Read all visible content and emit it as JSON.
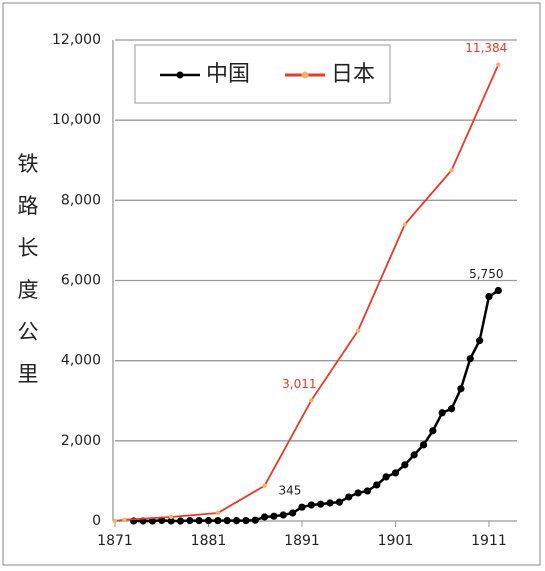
{
  "chart_data": {
    "type": "line",
    "y_label": "铁路长度公里",
    "xlim": [
      1871,
      1914
    ],
    "xticks": [
      1871,
      1881,
      1891,
      1901,
      1911
    ],
    "ylim": [
      0,
      12000
    ],
    "yticks": [
      0,
      {
        "value": 2000,
        "label": "2,000"
      },
      {
        "value": 4000,
        "label": "4,000"
      },
      {
        "value": 6000,
        "label": "6,000"
      },
      {
        "value": 8000,
        "label": "8,000"
      },
      {
        "value": 10000,
        "label": "10,000"
      },
      {
        "value": 12000,
        "label": "12,000"
      }
    ],
    "grid": true,
    "legend": "top-left",
    "series": [
      {
        "name": "中国",
        "color": "#000000",
        "x": [
          1873,
          1874,
          1875,
          1876,
          1877,
          1878,
          1879,
          1880,
          1881,
          1882,
          1883,
          1884,
          1885,
          1886,
          1887,
          1888,
          1889,
          1890,
          1891,
          1892,
          1893,
          1894,
          1895,
          1896,
          1897,
          1898,
          1899,
          1900,
          1901,
          1902,
          1903,
          1904,
          1905,
          1906,
          1907,
          1908,
          1909,
          1910,
          1911,
          1912
        ],
        "values": [
          0,
          0,
          0,
          15,
          0,
          0,
          10,
          10,
          10,
          10,
          10,
          10,
          10,
          20,
          100,
          120,
          150,
          200,
          345,
          400,
          420,
          450,
          470,
          600,
          700,
          750,
          900,
          1100,
          1200,
          1400,
          1650,
          1900,
          2250,
          2700,
          2800,
          3300,
          4050,
          4500,
          5600,
          5750
        ],
        "value_labels": [
          null,
          null,
          null,
          null,
          null,
          null,
          null,
          null,
          null,
          null,
          null,
          null,
          null,
          null,
          null,
          null,
          null,
          null,
          "345",
          null,
          null,
          null,
          null,
          null,
          null,
          null,
          null,
          null,
          null,
          null,
          null,
          null,
          null,
          null,
          null,
          null,
          null,
          null,
          null,
          "5,750"
        ]
      },
      {
        "name": "日本",
        "color": "#e8392a",
        "x": [
          1871,
          1872,
          1877,
          1882,
          1887,
          1892,
          1897,
          1902,
          1907,
          1912
        ],
        "values": [
          0,
          30,
          100,
          200,
          880,
          3011,
          4750,
          7400,
          8750,
          11384
        ],
        "value_labels": [
          null,
          null,
          null,
          null,
          null,
          "3,011",
          null,
          null,
          null,
          "11,384"
        ]
      }
    ]
  }
}
